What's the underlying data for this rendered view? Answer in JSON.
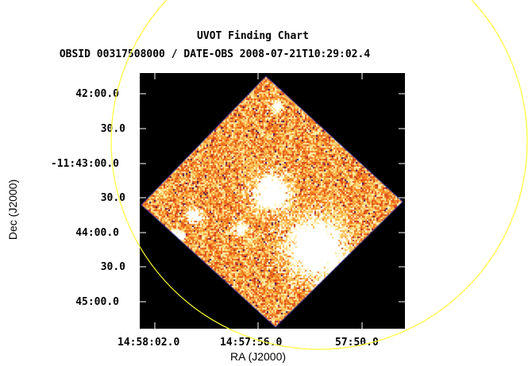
{
  "header": {
    "title": "UVOT Finding Chart",
    "subtitle": "OBSID 00317508000 / DATE-OBS 2008-07-21T10:29:02.4"
  },
  "axes": {
    "ylabel": "Dec (J2000)",
    "xlabel": "RA (J2000)",
    "yticks": [
      "42:00.0",
      "30.0",
      "-11:43:00.0",
      "30.0",
      "44:00.0",
      "30.0",
      "45:00.0"
    ],
    "xticks": [
      "14:58:02.0",
      "14:57:56.0",
      "57:50.0"
    ]
  },
  "colors": {
    "circle": "#ffff33",
    "frame_edge": "#3333cc"
  }
}
